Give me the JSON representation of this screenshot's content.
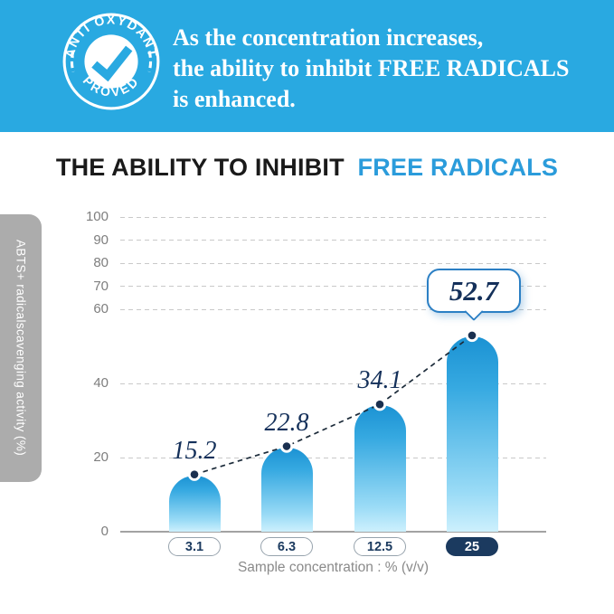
{
  "banner": {
    "bg_color": "#29A9E1",
    "badge": {
      "top_text": "ANTI OXYDANT",
      "bottom_text": "PROVED",
      "icon": "checkmark-icon",
      "color": "#29A9E1"
    },
    "headline_lines": [
      "As the concentration increases,",
      "the ability to inhibit FREE RADICALS",
      "is enhanced."
    ]
  },
  "title": {
    "black_part": "THE ABILITY TO INHIBIT",
    "accent_part": "FREE RADICALS",
    "accent_color": "#2B9CDB"
  },
  "chart_data": {
    "type": "bar",
    "title": "THE ABILITY TO INHIBIT FREE RADICALS",
    "categories": [
      "3.1",
      "6.3",
      "12.5",
      "25"
    ],
    "values": [
      15.2,
      22.8,
      34.1,
      52.7
    ],
    "highlight_index": 3,
    "highlight_value_label": "52.7",
    "y_ticks": [
      100,
      90,
      80,
      70,
      60,
      40,
      20,
      0
    ],
    "ylim": [
      0,
      100
    ],
    "ylabel": "ABTS+ radicalscavenging activity (%)",
    "xlabel": "Sample concentration : % (v/v)",
    "grid": "horizontal dashed",
    "legend": "none",
    "trend_line": "dashed connector through bar tops",
    "colors": {
      "bar_top": "#1B92D3",
      "bar_bottom": "#CDF0FD",
      "dot": "#1A3050",
      "value_label": "#14305A",
      "callout_border": "#2B7FC4",
      "highlight_pill_bg": "#1B3A5F",
      "gridline": "#c9c9c9",
      "axis_text": "#7e7e7e"
    }
  }
}
